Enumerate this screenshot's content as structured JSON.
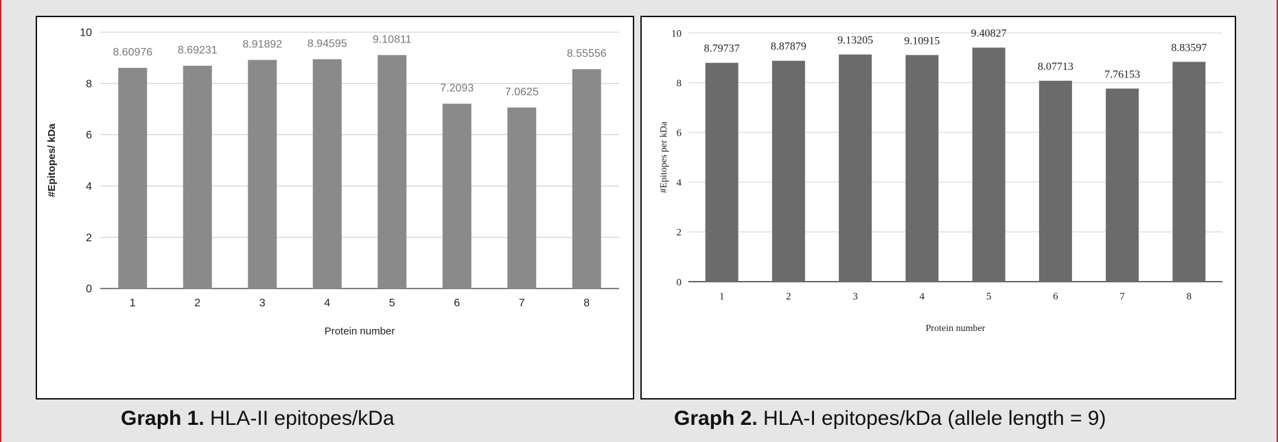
{
  "chart_data": [
    {
      "type": "bar",
      "categories": [
        "1",
        "2",
        "3",
        "4",
        "5",
        "6",
        "7",
        "8"
      ],
      "values": [
        8.60976,
        8.69231,
        8.91892,
        8.94595,
        9.10811,
        7.2093,
        7.0625,
        8.55556
      ],
      "data_labels": [
        "8.60976",
        "8.69231",
        "8.91892",
        "8.94595",
        "9.10811",
        "7.2093",
        "7.0625",
        "8.55556"
      ],
      "title": "",
      "xlabel": "Protein number",
      "ylabel": "#Epitopes/ kDa",
      "ylim": [
        0,
        10
      ],
      "yticks": [
        "0",
        "2",
        "4",
        "6",
        "8",
        "10"
      ],
      "grid": true,
      "bar_color": "#8a8a8a"
    },
    {
      "type": "bar",
      "categories": [
        "1",
        "2",
        "3",
        "4",
        "5",
        "6",
        "7",
        "8"
      ],
      "values": [
        8.79737,
        8.87879,
        9.13205,
        9.10915,
        9.40827,
        8.07713,
        7.76153,
        8.83597
      ],
      "data_labels": [
        "8.79737",
        "8.87879",
        "9.13205",
        "9.10915",
        "9.40827",
        "8.07713",
        "7.76153",
        "8.83597"
      ],
      "title": "",
      "xlabel": "Protein number",
      "ylabel": "#Epitopes per kDa",
      "ylim": [
        0,
        10
      ],
      "yticks": [
        "0",
        "2",
        "4",
        "6",
        "8",
        "10"
      ],
      "grid": true,
      "bar_color": "#6b6b6b"
    }
  ],
  "captions": {
    "graph1_label": "Graph 1.",
    "graph1_text": " HLA-II epitopes/kDa",
    "graph2_label": "Graph 2.",
    "graph2_text": " HLA-I epitopes/kDa (allele length = 9)"
  },
  "colors": {
    "frame_border": "#c0262c",
    "background": "#e6e6e6"
  }
}
